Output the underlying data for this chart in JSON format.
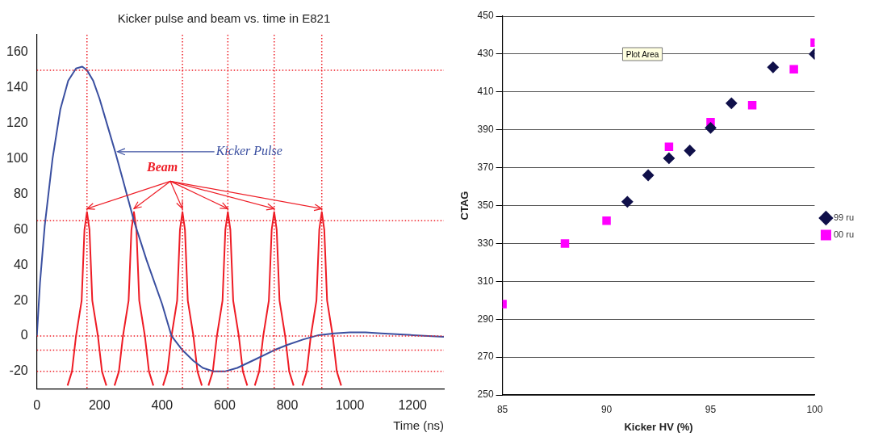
{
  "chart_data": [
    {
      "type": "line",
      "title": "Kicker pulse and beam vs. time in E821",
      "xlabel": "Time (ns)",
      "xlim": [
        0,
        1300
      ],
      "xticks": [
        0,
        200,
        400,
        600,
        800,
        1000,
        1200
      ],
      "ylim": [
        -30,
        170
      ],
      "yticks": [
        -20,
        0,
        20,
        40,
        60,
        80,
        100,
        120,
        140,
        160
      ],
      "grid": false,
      "legend": false,
      "marker": "none",
      "line_style": "solid",
      "series": [
        {
          "color": "#3a4fa0",
          "x": [
            0,
            10,
            25,
            50,
            75,
            100,
            125,
            145,
            160,
            180,
            200,
            225,
            250,
            275,
            310,
            350,
            400,
            430,
            465,
            500,
            530,
            565,
            600,
            640,
            700,
            758,
            800,
            850,
            900,
            950,
            1000,
            1050,
            1100,
            1200,
            1300
          ],
          "values": [
            0,
            30,
            62,
            100,
            128,
            144,
            151,
            152,
            150,
            144,
            134,
            119,
            104,
            88,
            65,
            43,
            18,
            0,
            -8,
            -14,
            -18,
            -20,
            -20,
            -18,
            -13,
            -8,
            -5,
            -2,
            0.5,
            1.5,
            2,
            2,
            1.5,
            0.5,
            -0.5
          ]
        },
        {
          "color": "#ee1c25",
          "x": [
            98,
            112,
            125,
            143,
            152,
            160,
            168,
            177,
            195,
            208,
            222,
            235,
            248,
            262,
            275,
            293,
            302,
            310,
            318,
            327,
            345,
            358,
            372,
            388,
            403,
            417,
            430,
            448,
            457,
            465,
            473,
            482,
            500,
            513,
            527,
            537,
            548,
            562,
            575,
            593,
            602,
            610,
            618,
            627,
            645,
            658,
            672,
            684,
            696,
            710,
            723,
            741,
            750,
            758,
            766,
            775,
            793,
            806,
            820,
            834,
            848,
            862,
            875,
            893,
            902,
            910,
            918,
            927,
            945,
            958,
            972
          ],
          "values": [
            -28,
            -20,
            0,
            20,
            60,
            70,
            60,
            20,
            0,
            -20,
            -28,
            null,
            -28,
            -20,
            0,
            20,
            60,
            70,
            60,
            20,
            0,
            -20,
            -28,
            null,
            -28,
            -20,
            0,
            20,
            60,
            70,
            60,
            20,
            0,
            -20,
            -28,
            null,
            -28,
            -20,
            0,
            20,
            60,
            70,
            60,
            20,
            0,
            -20,
            -28,
            null,
            -28,
            -20,
            0,
            20,
            60,
            70,
            60,
            20,
            0,
            -20,
            -28,
            null,
            -28,
            -20,
            0,
            20,
            60,
            70,
            60,
            20,
            0,
            -20,
            -28
          ]
        }
      ],
      "ref_lines": [
        {
          "axis": "y",
          "value": 150,
          "color": "#ee1c25",
          "line_style": "dotted"
        },
        {
          "axis": "y",
          "value": 65,
          "color": "#ee1c25",
          "line_style": "dotted"
        },
        {
          "axis": "y",
          "value": 0,
          "color": "#ee1c25",
          "line_style": "dotted"
        },
        {
          "axis": "y",
          "value": -8,
          "color": "#ee1c25",
          "line_style": "dotted"
        },
        {
          "axis": "y",
          "value": -20,
          "color": "#ee1c25",
          "line_style": "dotted"
        },
        {
          "axis": "x",
          "value": 160,
          "color": "#ee1c25",
          "line_style": "dotted"
        },
        {
          "axis": "x",
          "value": 465,
          "color": "#ee1c25",
          "line_style": "dotted"
        },
        {
          "axis": "x",
          "value": 610,
          "color": "#ee1c25",
          "line_style": "dotted"
        },
        {
          "axis": "x",
          "value": 758,
          "color": "#ee1c25",
          "line_style": "dotted"
        },
        {
          "axis": "x",
          "value": 910,
          "color": "#ee1c25",
          "line_style": "dotted"
        }
      ],
      "annotations": [
        {
          "text": "Kicker Pulse",
          "x": 250,
          "y": 104
        },
        {
          "text": "Beam",
          "x": 465,
          "y": 70
        }
      ]
    },
    {
      "type": "scatter",
      "xlabel": "Kicker HV (%)",
      "ylabel": "CTAG",
      "xlim": [
        85,
        100
      ],
      "xticks": [
        85,
        90,
        95,
        100
      ],
      "ylim": [
        250,
        450
      ],
      "yticks": [
        250,
        270,
        290,
        310,
        330,
        350,
        370,
        390,
        410,
        430,
        450
      ],
      "grid": "y",
      "legend": "right",
      "series": [
        {
          "name": "99 ru",
          "color": "#10104a",
          "marker": "diamond",
          "x": [
            91,
            92,
            93,
            94,
            95,
            96,
            98,
            100
          ],
          "values": [
            352,
            366,
            375,
            379,
            391,
            404,
            423,
            430
          ]
        },
        {
          "name": "00 ru",
          "color": "#ff00ff",
          "marker": "square",
          "x": [
            85,
            88,
            90,
            93,
            95,
            97,
            99,
            100
          ],
          "values": [
            298,
            330,
            342,
            381,
            394,
            403,
            422,
            436
          ]
        }
      ],
      "annotations": [
        "Plot Area"
      ]
    }
  ]
}
